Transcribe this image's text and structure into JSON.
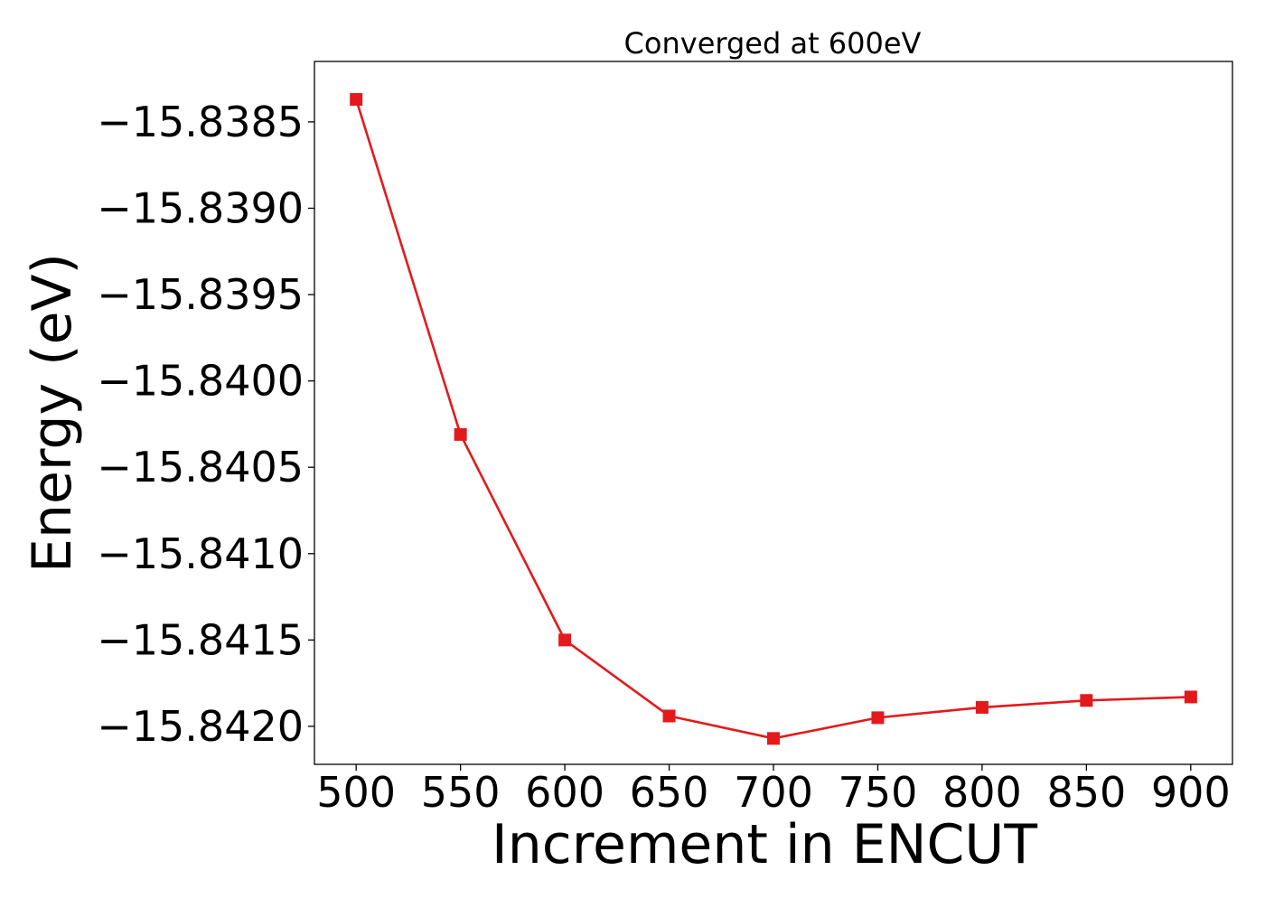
{
  "chart_data": {
    "type": "line",
    "title": "Converged at 600eV",
    "xlabel": "Increment in ENCUT",
    "ylabel": "Energy (eV)",
    "x": [
      500,
      550,
      600,
      650,
      700,
      750,
      800,
      850,
      900
    ],
    "series": [
      {
        "values": [
          -15.83837,
          -15.84031,
          -15.8415,
          -15.84194,
          -15.84207,
          -15.84195,
          -15.84189,
          -15.84185,
          -15.84183
        ]
      }
    ],
    "xlim": [
      480,
      920
    ],
    "ylim": [
      -15.84222,
      -15.83815
    ],
    "xticks": [
      500,
      550,
      600,
      650,
      700,
      750,
      800,
      850,
      900
    ],
    "xtick_labels": [
      "500",
      "550",
      "600",
      "650",
      "700",
      "750",
      "800",
      "850",
      "900"
    ],
    "yticks": [
      -15.8385,
      -15.839,
      -15.8395,
      -15.84,
      -15.8405,
      -15.841,
      -15.8415,
      -15.842
    ],
    "ytick_labels": [
      "−15.8385",
      "−15.8390",
      "−15.8395",
      "−15.8400",
      "−15.8405",
      "−15.8410",
      "−15.8415",
      "−15.8420"
    ],
    "grid": false,
    "legend": "none",
    "marker": "square",
    "colors": {
      "series": "#e31a1c",
      "axes": "#000000",
      "background": "#ffffff"
    }
  }
}
